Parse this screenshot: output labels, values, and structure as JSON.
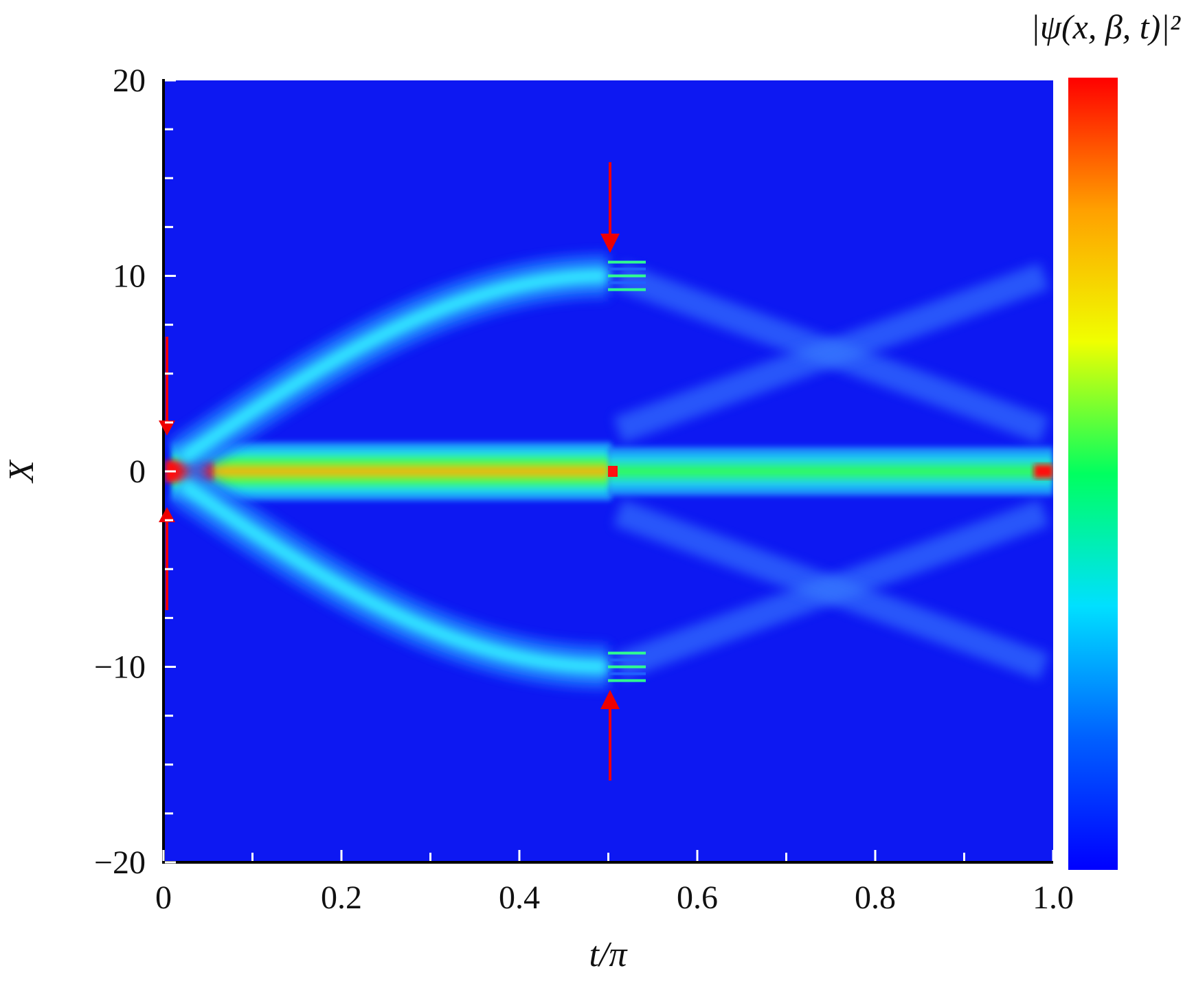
{
  "chart_data": {
    "type": "heatmap",
    "xlabel": "t/π",
    "ylabel": "X",
    "colorbar_label": "|ψ(x, β, t)|²",
    "xlim": [
      0,
      1
    ],
    "ylim": [
      -20,
      20
    ],
    "xticks": [
      0,
      0.2,
      0.4,
      0.6,
      0.8,
      {
        "value": 1,
        "label": "1.0"
      }
    ],
    "yticks": [
      {
        "value": -20,
        "label": "−20"
      },
      {
        "value": -10,
        "label": "−10"
      },
      0,
      10,
      20
    ],
    "xminorticks": [
      0.1,
      0.3,
      0.5,
      0.7,
      0.9
    ],
    "yminorticks": [
      -17.5,
      -15,
      -12.5,
      -7.5,
      -5,
      -2.5,
      2.5,
      5,
      7.5,
      12.5,
      15,
      17.5
    ],
    "colormap": [
      "#0000ff",
      "#0060ff",
      "#00e0ff",
      "#00ff60",
      "#f0ff00",
      "#ffa000",
      "#ff0000"
    ]
  }
}
